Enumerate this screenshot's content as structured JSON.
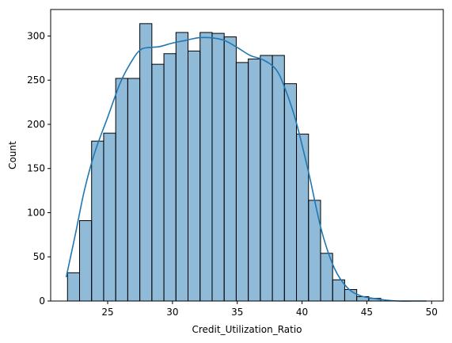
{
  "chart_data": {
    "type": "histogram",
    "xlabel": "Credit_Utilization_Ratio",
    "ylabel": "Count",
    "xlim": [
      20.6,
      50.9
    ],
    "ylim": [
      0,
      330
    ],
    "x_ticks": [
      25,
      30,
      35,
      40,
      45,
      50
    ],
    "y_ticks": [
      0,
      50,
      100,
      150,
      200,
      250,
      300
    ],
    "grid": false,
    "bar_fill_color": "#1f77b4",
    "bar_fill_opacity": 0.5,
    "bar_edge_color": "#000000",
    "kde_line_color": "#1f77b4",
    "bins": {
      "edges": [
        21.9,
        22.83,
        23.76,
        24.69,
        25.62,
        26.55,
        27.48,
        28.41,
        29.34,
        30.27,
        31.2,
        32.13,
        33.06,
        33.99,
        34.92,
        35.85,
        36.78,
        37.71,
        38.64,
        39.57,
        40.5,
        41.43,
        42.36,
        43.29,
        44.22,
        45.15,
        46.08,
        47.01,
        47.94,
        48.87,
        49.8
      ],
      "counts": [
        32,
        91,
        181,
        190,
        252,
        252,
        314,
        268,
        280,
        304,
        283,
        304,
        303,
        299,
        270,
        274,
        278,
        278,
        246,
        189,
        114,
        54,
        24,
        13,
        5,
        3,
        0,
        0,
        0,
        0
      ]
    },
    "kde": {
      "x": [
        21.8,
        22.5,
        23.2,
        24.0,
        25.0,
        26.0,
        27.0,
        27.6,
        28.2,
        29.0,
        30.0,
        31.0,
        32.0,
        33.0,
        34.0,
        35.0,
        36.0,
        37.0,
        38.0,
        38.7,
        39.5,
        40.5,
        41.5,
        42.5,
        43.5,
        44.5,
        45.5,
        46.5,
        47.5,
        48.5,
        49.6
      ],
      "y": [
        27,
        75,
        125,
        168,
        208,
        248,
        275,
        285,
        287,
        288,
        292,
        295,
        298,
        298,
        295,
        287,
        278,
        273,
        262,
        240,
        205,
        146,
        80,
        37,
        15,
        6,
        3,
        1,
        0,
        0,
        0
      ]
    }
  }
}
